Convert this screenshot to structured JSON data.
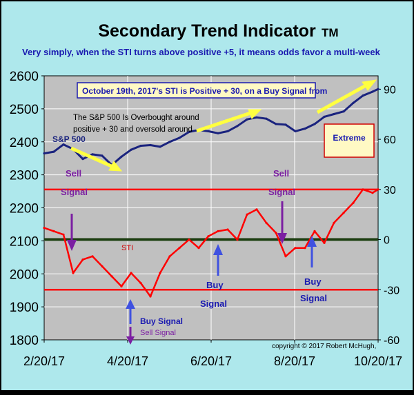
{
  "header": {
    "title": "Secondary Trend Indicator",
    "trademark": "TM",
    "subtitle": "Very simply, when the STI turns above positive +5, it means odds favor a multi-week"
  },
  "annotations": {
    "callout_top": "October 19th, 2017's STI is Positive + 30, on a Buy Signal from",
    "overbought_line1": "The S&P 500 Is Overbought around",
    "overbought_line2": "positive + 30 and oversold around",
    "extreme_box": "Extreme",
    "sp500_label": "S&P 500",
    "sti_label": "STI",
    "sell_signal_1a": "Sell",
    "sell_signal_1b": "Signal",
    "sell_signal_2a": "Sell",
    "sell_signal_2b": "Signal",
    "buy_signal_1a": "Buy",
    "buy_signal_1b": "Signal",
    "buy_signal_2a": "Buy",
    "buy_signal_2b": "Signal",
    "buy_signal_3": "Buy Signal",
    "sell_signal_3": "Sell Signal",
    "copyright": "copyright © 2017 Robert McHugh,"
  },
  "colors": {
    "background": "#c0c0c0",
    "frame_fill": "#aee8ec",
    "sp500_line": "#1a237e",
    "sti_line": "#ff0000",
    "zero_line": "#1b3d10",
    "threshold_line": "#ff0000",
    "trend_arrow": "#ffff40",
    "sell_arrow": "#7b1fa2",
    "buy_arrow": "#3f51e0",
    "title": "#000000",
    "subtitle": "#1a1ab0"
  },
  "chart_data": {
    "type": "line",
    "x_tick_labels": [
      "2/20/17",
      "4/20/17",
      "6/20/17",
      "8/20/17",
      "10/20/17"
    ],
    "x_range": [
      "2017-02-20",
      "2017-10-20"
    ],
    "left_axis": {
      "ticks": [
        1800,
        1900,
        2000,
        2100,
        2200,
        2300,
        2400,
        2500,
        2600
      ],
      "range": [
        1800,
        2600
      ]
    },
    "right_axis": {
      "ticks": [
        -60,
        -30,
        0,
        30,
        60,
        90
      ],
      "range": [
        -60,
        98
      ]
    },
    "reference_lines": [
      {
        "axis": "right",
        "value": 30
      },
      {
        "axis": "right",
        "value": 0
      },
      {
        "axis": "right",
        "value": -30
      }
    ],
    "series": [
      {
        "name": "S&P 500",
        "axis": "left",
        "x": [
          "2017-02-20",
          "2017-02-27",
          "2017-03-06",
          "2017-03-13",
          "2017-03-20",
          "2017-03-27",
          "2017-04-03",
          "2017-04-10",
          "2017-04-17",
          "2017-04-24",
          "2017-05-01",
          "2017-05-08",
          "2017-05-15",
          "2017-05-22",
          "2017-05-29",
          "2017-06-05",
          "2017-06-12",
          "2017-06-19",
          "2017-06-26",
          "2017-07-03",
          "2017-07-10",
          "2017-07-17",
          "2017-07-24",
          "2017-07-31",
          "2017-08-07",
          "2017-08-14",
          "2017-08-21",
          "2017-08-28",
          "2017-09-04",
          "2017-09-11",
          "2017-09-18",
          "2017-09-25",
          "2017-10-02",
          "2017-10-09",
          "2017-10-16",
          "2017-10-20"
        ],
        "values": [
          2365,
          2370,
          2392,
          2378,
          2348,
          2362,
          2358,
          2330,
          2355,
          2376,
          2388,
          2390,
          2385,
          2400,
          2412,
          2430,
          2436,
          2432,
          2426,
          2432,
          2448,
          2468,
          2474,
          2470,
          2454,
          2452,
          2432,
          2440,
          2454,
          2476,
          2484,
          2492,
          2518,
          2540,
          2552,
          2560
        ]
      },
      {
        "name": "STI",
        "axis": "right",
        "x": [
          "2017-02-20",
          "2017-02-27",
          "2017-03-06",
          "2017-03-13",
          "2017-03-20",
          "2017-03-27",
          "2017-04-03",
          "2017-04-10",
          "2017-04-17",
          "2017-04-24",
          "2017-05-01",
          "2017-05-08",
          "2017-05-15",
          "2017-05-22",
          "2017-05-29",
          "2017-06-05",
          "2017-06-12",
          "2017-06-19",
          "2017-06-26",
          "2017-07-03",
          "2017-07-10",
          "2017-07-17",
          "2017-07-24",
          "2017-07-31",
          "2017-08-07",
          "2017-08-14",
          "2017-08-21",
          "2017-08-28",
          "2017-09-04",
          "2017-09-11",
          "2017-09-18",
          "2017-09-25",
          "2017-10-02",
          "2017-10-09",
          "2017-10-16",
          "2017-10-20"
        ],
        "values": [
          7,
          5,
          3,
          -20,
          -12,
          -10,
          -16,
          -22,
          -28,
          -20,
          -26,
          -34,
          -20,
          -10,
          -5,
          0,
          -5,
          2,
          5,
          6,
          0,
          15,
          18,
          10,
          4,
          -10,
          -5,
          -5,
          5,
          -2,
          10,
          16,
          22,
          30,
          28,
          30
        ]
      }
    ]
  }
}
